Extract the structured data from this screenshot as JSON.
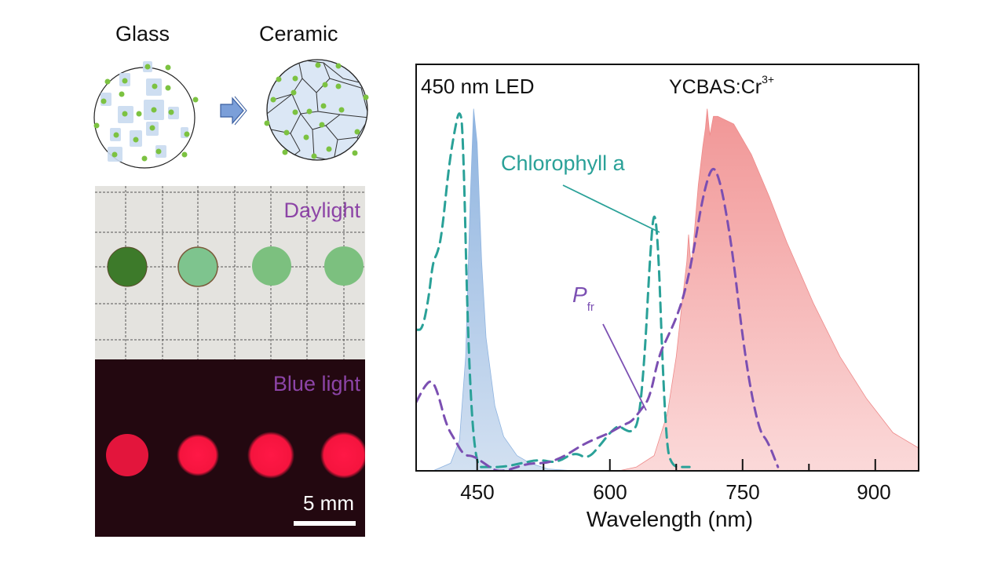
{
  "schematic": {
    "glass_label": "Glass",
    "ceramic_label": "Ceramic",
    "arrow_icon": "right-arrow-icon"
  },
  "photos": {
    "daylight_label": "Daylight",
    "bluelight_label": "Blue light",
    "scale_label": "5 mm",
    "sample_count": 4
  },
  "colors": {
    "led_fill": "#9dbde3",
    "ycbas_fill": "#f08b8b",
    "chlorophyll": "#2aa198",
    "pfr": "#7b4fb2",
    "caption_purple": "#8c44a6"
  },
  "chart_data": {
    "type": "area",
    "title": "",
    "xlabel": "Wavelength (nm)",
    "ylabel": "",
    "xlim": [
      381,
      949
    ],
    "ylim": [
      0,
      1.05
    ],
    "xticks": [
      450,
      600,
      750,
      900
    ],
    "xtick_labels": [
      "450",
      "600",
      "750",
      "900"
    ],
    "minor_xticks": [
      525,
      675,
      825
    ],
    "annotations": {
      "led": "450 nm LED",
      "ycbas_main": "YCBAS:Cr",
      "ycbas_sup": "3+",
      "chlorophyll": "Chlorophyll a",
      "pfr_main": "P",
      "pfr_sub": "fr"
    },
    "series": [
      {
        "name": "450 nm LED",
        "style": "filled",
        "x": [
          400,
          420,
          430,
          437,
          442,
          446,
          450,
          455,
          460,
          470,
          480,
          495,
          510,
          530,
          560
        ],
        "y": [
          0.0,
          0.02,
          0.08,
          0.3,
          0.7,
          0.95,
          0.86,
          0.55,
          0.35,
          0.17,
          0.09,
          0.04,
          0.02,
          0.005,
          0.0
        ]
      },
      {
        "name": "YCBAS:Cr3+",
        "style": "filled",
        "x": [
          610,
          630,
          650,
          665,
          675,
          682,
          687,
          689,
          692,
          700,
          705,
          708,
          710,
          713,
          717,
          722,
          740,
          760,
          780,
          800,
          830,
          860,
          890,
          920,
          949
        ],
        "y": [
          0.0,
          0.01,
          0.04,
          0.15,
          0.3,
          0.45,
          0.55,
          0.62,
          0.53,
          0.75,
          0.85,
          0.9,
          0.95,
          0.88,
          0.93,
          0.93,
          0.91,
          0.83,
          0.72,
          0.6,
          0.44,
          0.3,
          0.19,
          0.1,
          0.06
        ]
      },
      {
        "name": "Chlorophyll a",
        "style": "dashed",
        "x": [
          381,
          388,
          395,
          400,
          405,
          410,
          418,
          425,
          430,
          434,
          440,
          448,
          460,
          480,
          500,
          520,
          540,
          560,
          575,
          590,
          600,
          610,
          615,
          625,
          633,
          640,
          645,
          650,
          655,
          660,
          665,
          670,
          675,
          680,
          690
        ],
        "y": [
          0.37,
          0.37,
          0.45,
          0.55,
          0.57,
          0.62,
          0.8,
          0.9,
          0.95,
          0.9,
          0.3,
          0.01,
          0.01,
          0.01,
          0.02,
          0.03,
          0.02,
          0.05,
          0.03,
          0.07,
          0.1,
          0.12,
          0.11,
          0.1,
          0.13,
          0.32,
          0.55,
          0.7,
          0.58,
          0.25,
          0.05,
          0.02,
          0.01,
          0.01,
          0.01
        ]
      },
      {
        "name": "Pfr",
        "style": "dashed",
        "x": [
          381,
          390,
          398,
          405,
          415,
          425,
          435,
          445,
          458,
          470,
          482,
          495,
          510,
          530,
          550,
          570,
          590,
          600,
          615,
          625,
          635,
          645,
          655,
          665,
          675,
          685,
          695,
          705,
          715,
          722,
          730,
          740,
          750,
          760,
          770,
          778,
          790
        ],
        "y": [
          0.18,
          0.22,
          0.24,
          0.21,
          0.12,
          0.08,
          0.04,
          0.04,
          0.02,
          0.0,
          0.0,
          0.01,
          0.02,
          0.02,
          0.04,
          0.07,
          0.09,
          0.1,
          0.12,
          0.13,
          0.16,
          0.19,
          0.3,
          0.35,
          0.4,
          0.47,
          0.58,
          0.72,
          0.8,
          0.78,
          0.7,
          0.55,
          0.35,
          0.2,
          0.1,
          0.08,
          0.01
        ]
      }
    ]
  }
}
